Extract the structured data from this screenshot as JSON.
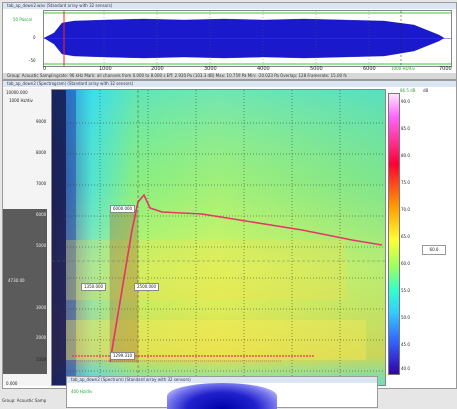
{
  "waveform_window": {
    "title": "tab_ap_down2.wav (Standard array with 32 sensors)",
    "y_label_top": "50 Pascal",
    "y_label_mid": "0",
    "y_label_bottom": "-50",
    "x_ticks": [
      "0",
      "1000",
      "2000",
      "3000",
      "4000",
      "5000",
      "6000",
      "7000"
    ],
    "x_unit": "1000 Hz/div",
    "status": "Group: Acoustic  Samplingrate: 96 kHz  Mark: all channels from 0.000 to 8.000 s          Eff: 2.920 Pa (103.3 dB)  Max: 10.759 Pa  Min: -20.023 Pa  Overlap: 128  Framerate: 15.00 fs"
  },
  "spectrogram_window": {
    "title": "tab_ap_down2 (Spectrogram) (Standard array with 32 sensors)",
    "y_labels": [
      "10000.000",
      "9000",
      "8000",
      "7000",
      "6000",
      "5000",
      "4730.00",
      "3000",
      "2000",
      "1000",
      "0.000"
    ],
    "y_unit": "1000 Hz/div",
    "annotations": [
      "6000.000",
      "1350.000",
      "2500.000",
      "1299.310"
    ],
    "colorbar": {
      "top_label": "86.5 dB",
      "top_label2": "dB",
      "labels": [
        "90.0",
        "85.0",
        "80.0",
        "75.0",
        "70.0",
        "65.0",
        "60.0",
        "55.0",
        "50.0",
        "45.0",
        "40.0"
      ],
      "value_box": "60.0"
    }
  },
  "bottom_window": {
    "title": "tab_ap_down2 (Spectrum) (Standard array with 32 sensors)",
    "green_label": "400 Hz/div"
  },
  "left_status": "Group: Acoustic  Samp"
}
